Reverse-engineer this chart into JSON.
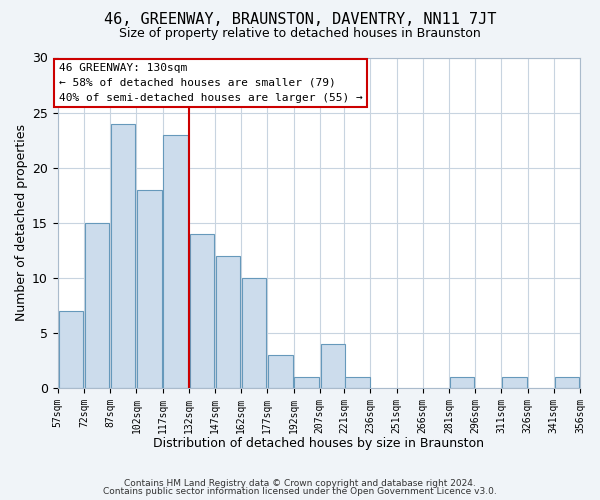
{
  "title": "46, GREENWAY, BRAUNSTON, DAVENTRY, NN11 7JT",
  "subtitle": "Size of property relative to detached houses in Braunston",
  "xlabel": "Distribution of detached houses by size in Braunston",
  "ylabel": "Number of detached properties",
  "bar_color": "#ccdcec",
  "bar_edge_color": "#6699bb",
  "vline_x": 132,
  "vline_color": "#cc0000",
  "bins_left": [
    57,
    72,
    87,
    102,
    117,
    132,
    147,
    162,
    177,
    192,
    207,
    221,
    236,
    251,
    266,
    281,
    296,
    311,
    326,
    341
  ],
  "bin_width": 15,
  "values": [
    7,
    15,
    24,
    18,
    23,
    14,
    12,
    10,
    3,
    1,
    4,
    1,
    0,
    0,
    0,
    1,
    0,
    1,
    0,
    1
  ],
  "tick_labels": [
    "57sqm",
    "72sqm",
    "87sqm",
    "102sqm",
    "117sqm",
    "132sqm",
    "147sqm",
    "162sqm",
    "177sqm",
    "192sqm",
    "207sqm",
    "221sqm",
    "236sqm",
    "251sqm",
    "266sqm",
    "281sqm",
    "296sqm",
    "311sqm",
    "326sqm",
    "341sqm",
    "356sqm"
  ],
  "ylim": [
    0,
    30
  ],
  "yticks": [
    0,
    5,
    10,
    15,
    20,
    25,
    30
  ],
  "annotation_title": "46 GREENWAY: 130sqm",
  "annotation_line1": "← 58% of detached houses are smaller (79)",
  "annotation_line2": "40% of semi-detached houses are larger (55) →",
  "annotation_box_color": "#ffffff",
  "annotation_box_edge": "#cc0000",
  "footer1": "Contains HM Land Registry data © Crown copyright and database right 2024.",
  "footer2": "Contains public sector information licensed under the Open Government Licence v3.0.",
  "background_color": "#f0f4f8",
  "plot_bg_color": "#ffffff",
  "grid_color": "#c8d4e0"
}
